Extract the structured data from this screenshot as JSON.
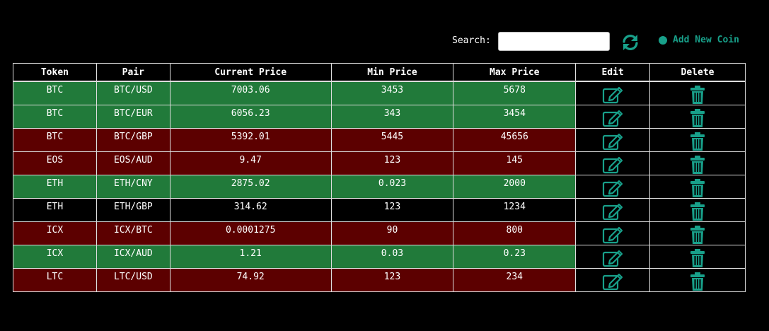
{
  "toolbar": {
    "search_label": "Search:",
    "search_value": "",
    "search_placeholder": "",
    "refresh_icon": "refresh-icon",
    "add_label": "Add New Coin"
  },
  "colors": {
    "accent": "#18a08a",
    "row_green": "#217a3a",
    "row_red": "#5c0000",
    "row_black": "#000000"
  },
  "table": {
    "headers": [
      "Token",
      "Pair",
      "Current Price",
      "Min Price",
      "Max Price",
      "Edit",
      "Delete"
    ],
    "rows": [
      {
        "token": "BTC",
        "pair": "BTC/USD",
        "current": "7003.06",
        "min": "3453",
        "max": "5678",
        "status": "green"
      },
      {
        "token": "BTC",
        "pair": "BTC/EUR",
        "current": "6056.23",
        "min": "343",
        "max": "3454",
        "status": "green"
      },
      {
        "token": "BTC",
        "pair": "BTC/GBP",
        "current": "5392.01",
        "min": "5445",
        "max": "45656",
        "status": "red"
      },
      {
        "token": "EOS",
        "pair": "EOS/AUD",
        "current": "9.47",
        "min": "123",
        "max": "145",
        "status": "red"
      },
      {
        "token": "ETH",
        "pair": "ETH/CNY",
        "current": "2875.02",
        "min": "0.023",
        "max": "2000",
        "status": "green"
      },
      {
        "token": "ETH",
        "pair": "ETH/GBP",
        "current": "314.62",
        "min": "123",
        "max": "1234",
        "status": "black"
      },
      {
        "token": "ICX",
        "pair": "ICX/BTC",
        "current": "0.0001275",
        "min": "90",
        "max": "800",
        "status": "red"
      },
      {
        "token": "ICX",
        "pair": "ICX/AUD",
        "current": "1.21",
        "min": "0.03",
        "max": "0.23",
        "status": "green"
      },
      {
        "token": "LTC",
        "pair": "LTC/USD",
        "current": "74.92",
        "min": "123",
        "max": "234",
        "status": "red"
      }
    ],
    "edit_icon": "edit-icon",
    "delete_icon": "trash-icon"
  }
}
